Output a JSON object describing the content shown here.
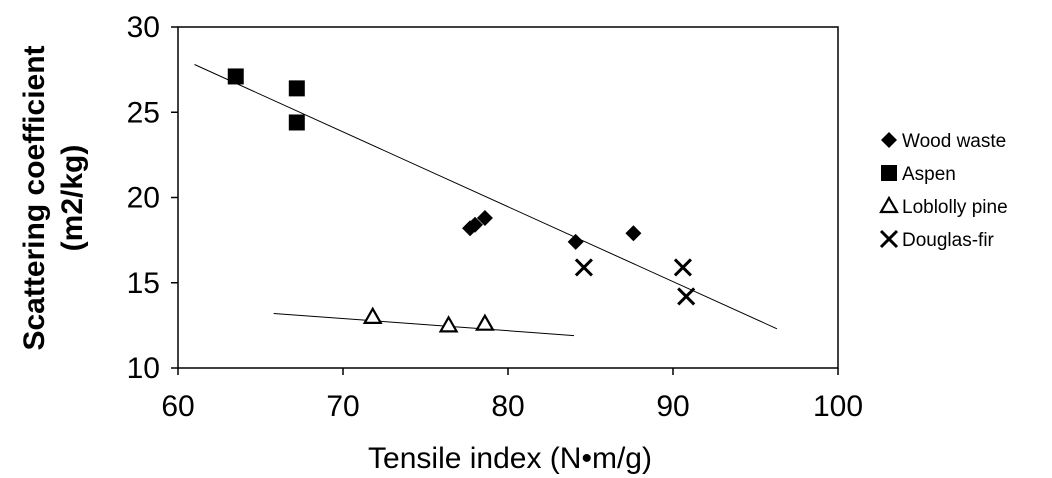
{
  "chart_data": {
    "type": "scatter",
    "xlabel": "Tensile index (N•m/g)",
    "ylabel_line1": "Scattering coefficient",
    "ylabel_line2": "(m2/kg)",
    "xlim": [
      60,
      100
    ],
    "ylim": [
      10,
      30
    ],
    "x_ticks": [
      60,
      70,
      80,
      90,
      100
    ],
    "y_ticks": [
      10,
      15,
      20,
      25,
      30
    ],
    "grid": false,
    "legend_position": "right",
    "series": [
      {
        "name": "Wood waste",
        "marker": "diamond",
        "color": "#000000",
        "points": [
          [
            77.7,
            18.2
          ],
          [
            78.0,
            18.4
          ],
          [
            78.6,
            18.8
          ],
          [
            84.1,
            17.4
          ],
          [
            87.6,
            17.9
          ]
        ]
      },
      {
        "name": "Aspen",
        "marker": "square",
        "color": "#000000",
        "points": [
          [
            63.5,
            27.1
          ],
          [
            67.2,
            26.4
          ],
          [
            67.2,
            24.4
          ]
        ]
      },
      {
        "name": "Loblolly pine",
        "marker": "triangle-open",
        "color": "#000000",
        "points": [
          [
            71.8,
            13.0
          ],
          [
            76.4,
            12.5
          ],
          [
            78.6,
            12.6
          ]
        ]
      },
      {
        "name": "Douglas-fir",
        "marker": "x",
        "color": "#000000",
        "points": [
          [
            84.6,
            15.9
          ],
          [
            90.6,
            15.9
          ],
          [
            90.8,
            14.2
          ]
        ]
      }
    ],
    "trend_lines": [
      {
        "from": [
          61.0,
          27.8
        ],
        "to": [
          96.3,
          12.3
        ]
      },
      {
        "from": [
          65.8,
          13.2
        ],
        "to": [
          84.0,
          11.9
        ]
      }
    ]
  }
}
